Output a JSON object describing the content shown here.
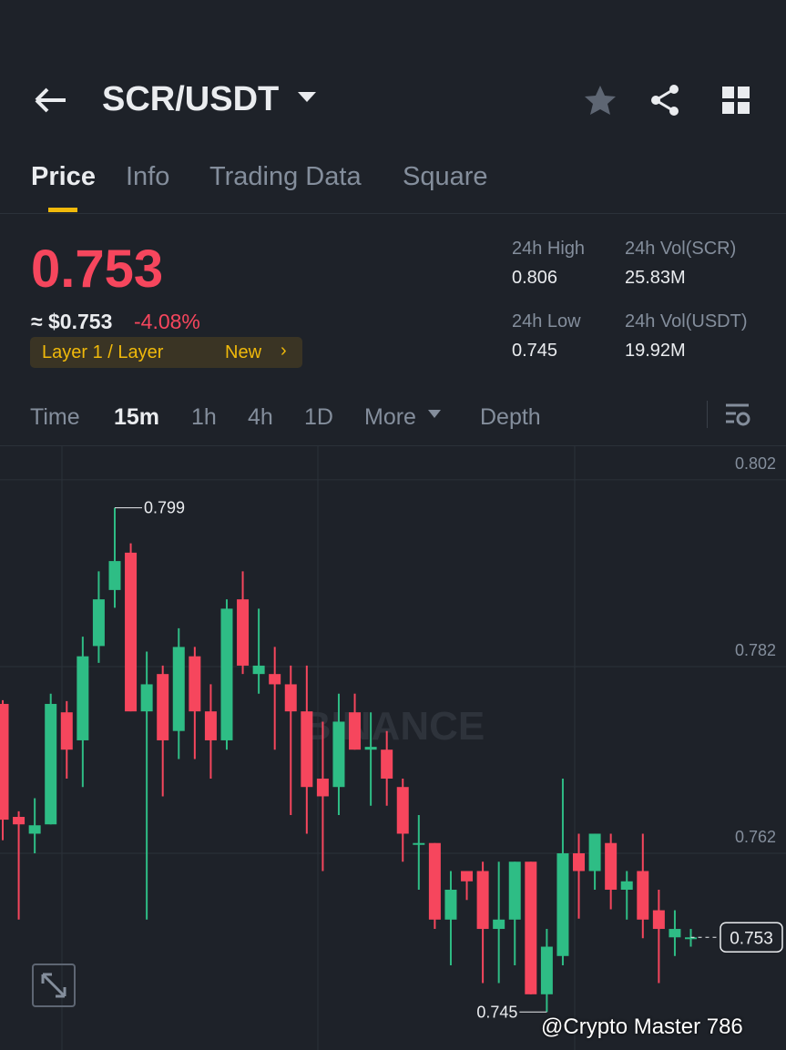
{
  "header": {
    "pair": "SCR/USDT"
  },
  "tabs": [
    "Price",
    "Info",
    "Trading Data",
    "Square"
  ],
  "summary": {
    "price": "0.753",
    "approx": "≈ $0.753",
    "change": "-4.08%",
    "tag": "Layer 1 / Layer",
    "tag_link": "New",
    "stats": [
      {
        "label": "24h High",
        "value": "0.806"
      },
      {
        "label": "24h Vol(SCR)",
        "value": "25.83M"
      },
      {
        "label": "24h Low",
        "value": "0.745"
      },
      {
        "label": "24h Vol(USDT)",
        "value": "19.92M"
      }
    ]
  },
  "intervals": [
    "Time",
    "15m",
    "1h",
    "4h",
    "1D",
    "More",
    "Depth"
  ],
  "watermark": "@Crypto Master 786",
  "chart_data": {
    "type": "candlestick",
    "watermark": "BINANCE",
    "open": [
      0.778,
      0.7659,
      0.7641,
      0.7651,
      0.7771,
      0.7741,
      0.7842,
      0.7902,
      0.7942,
      0.7772,
      0.7812,
      0.7751,
      0.7831,
      0.7772,
      0.7741,
      0.7892,
      0.7812,
      0.7812,
      0.7801,
      0.7772,
      0.77,
      0.7691,
      0.7771,
      0.7731,
      0.7731,
      0.7691,
      0.7631,
      0.7631,
      0.7549,
      0.7601,
      0.7601,
      0.7539,
      0.7549,
      0.7611,
      0.7469,
      0.751,
      0.762,
      0.7601,
      0.7631,
      0.7581,
      0.7601,
      0.7559,
      0.753,
      0.753
    ],
    "high": [
      0.7784,
      0.7665,
      0.7679,
      0.7791,
      0.7783,
      0.7852,
      0.7922,
      0.799,
      0.7952,
      0.7836,
      0.7821,
      0.7861,
      0.7841,
      0.7801,
      0.7892,
      0.7922,
      0.7882,
      0.7841,
      0.7821,
      0.7821,
      0.7761,
      0.7791,
      0.7791,
      0.7771,
      0.7751,
      0.77,
      0.7661,
      0.7631,
      0.7601,
      0.7601,
      0.7611,
      0.7611,
      0.7611,
      0.7611,
      0.7539,
      0.77,
      0.7641,
      0.7641,
      0.7641,
      0.7601,
      0.7641,
      0.7581,
      0.7559,
      0.7539
    ],
    "low": [
      0.7634,
      0.7549,
      0.762,
      0.7651,
      0.77,
      0.7691,
      0.7824,
      0.7883,
      0.7772,
      0.7549,
      0.7681,
      0.7721,
      0.7721,
      0.77,
      0.7731,
      0.7812,
      0.7791,
      0.7731,
      0.7661,
      0.7641,
      0.7601,
      0.7661,
      0.7731,
      0.7671,
      0.7671,
      0.7611,
      0.7581,
      0.7539,
      0.75,
      0.757,
      0.7481,
      0.7481,
      0.75,
      0.7469,
      0.745,
      0.75,
      0.755,
      0.7581,
      0.756,
      0.7549,
      0.7529,
      0.7481,
      0.751,
      0.752
    ],
    "close": [
      0.7656,
      0.7651,
      0.765,
      0.778,
      0.7731,
      0.7831,
      0.7892,
      0.7933,
      0.7772,
      0.7801,
      0.7741,
      0.7841,
      0.7772,
      0.7741,
      0.7882,
      0.7821,
      0.7821,
      0.7801,
      0.7772,
      0.7691,
      0.7681,
      0.7761,
      0.7731,
      0.7734,
      0.77,
      0.7641,
      0.7631,
      0.7549,
      0.7581,
      0.759,
      0.7539,
      0.7549,
      0.7611,
      0.7469,
      0.752,
      0.762,
      0.7601,
      0.7641,
      0.7581,
      0.759,
      0.7549,
      0.7539,
      0.7539,
      0.753
    ],
    "up_color": "#2ebd85",
    "down_color": "#f6465d",
    "ylim": [
      0.7422,
      0.8056
    ],
    "yticks": [
      0.802,
      0.782,
      0.762
    ],
    "grid": true,
    "annotations": {
      "max": {
        "value": 0.799,
        "label": "0.799"
      },
      "min": {
        "value": 0.745,
        "label": "0.745"
      },
      "last": {
        "value": 0.753,
        "label": "0.753"
      }
    }
  }
}
